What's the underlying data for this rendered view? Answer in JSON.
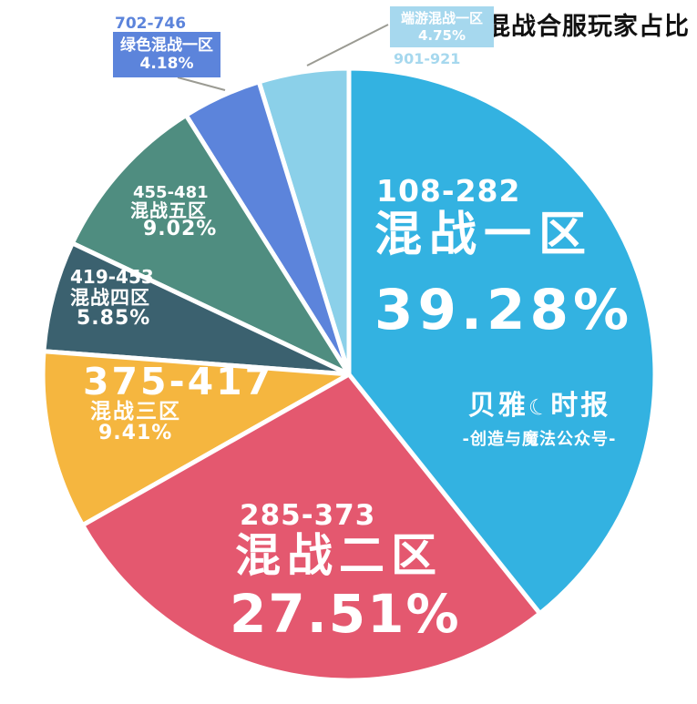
{
  "title": "混战合服玩家占比",
  "watermark": {
    "brand_left": "贝雅",
    "brand_right": "时报",
    "icon_char": "☾",
    "subtitle": "-创造与魔法公众号-"
  },
  "chart_data": {
    "type": "pie",
    "title": "混战合服玩家占比",
    "direction": "clockwise from 12 o'clock",
    "value_unit": "percent",
    "background": "#FFFFFF",
    "callout_line_color": "#9B9B93",
    "slices": [
      {
        "name": "混战一区",
        "server_range": "108-282",
        "value": 39.28,
        "label": "39.28%",
        "color": "#33B2E1"
      },
      {
        "name": "混战二区",
        "server_range": "285-373",
        "value": 27.51,
        "label": "27.51%",
        "color": "#E4586F"
      },
      {
        "name": "混战三区",
        "server_range": "375-417",
        "value": 9.41,
        "label": "9.41%",
        "color": "#F5B63F"
      },
      {
        "name": "混战四区",
        "server_range": "419-453",
        "value": 5.85,
        "label": "5.85%",
        "color": "#3B616F"
      },
      {
        "name": "混战五区",
        "server_range": "455-481",
        "value": 9.02,
        "label": "9.02%",
        "color": "#4F8D80"
      },
      {
        "name": "绿色混战一区",
        "server_range": "702-746",
        "value": 4.18,
        "label": "4.18%",
        "color": "#5C84DB"
      },
      {
        "name": "端游混战一区",
        "server_range": "901-921",
        "value": 4.75,
        "label": "4.75%",
        "color": "#8BD0E9",
        "callout_bg": "#A6D8EE"
      }
    ]
  }
}
